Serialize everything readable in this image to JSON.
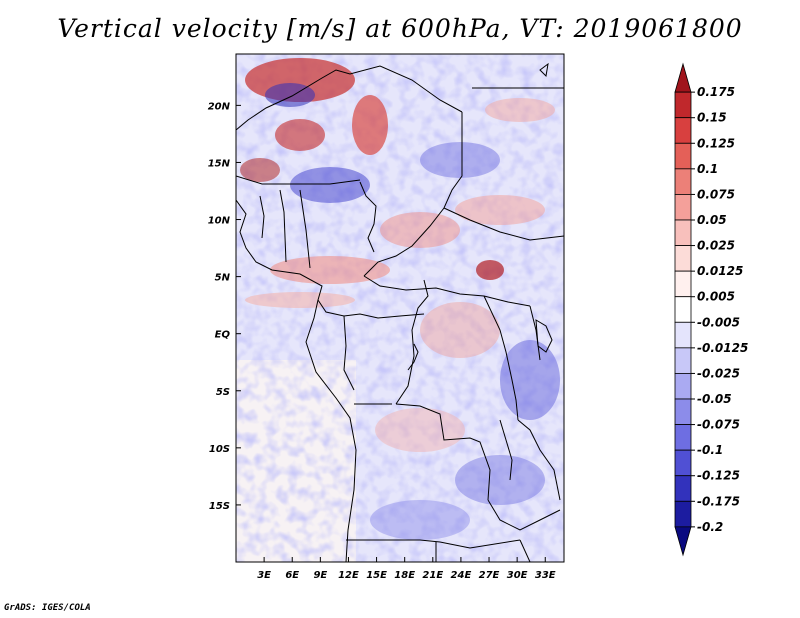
{
  "title": "Vertical velocity [m/s] at 600hPa, VT: 2019061800",
  "credit": "GrADS: IGES/COLA",
  "map": {
    "lon_range": [
      0,
      35
    ],
    "lat_range": [
      -20,
      24.5
    ],
    "lon_ticks": [
      {
        "value": 3,
        "label": "3E"
      },
      {
        "value": 6,
        "label": "6E"
      },
      {
        "value": 9,
        "label": "9E"
      },
      {
        "value": 12,
        "label": "12E"
      },
      {
        "value": 15,
        "label": "15E"
      },
      {
        "value": 18,
        "label": "18E"
      },
      {
        "value": 21,
        "label": "21E"
      },
      {
        "value": 24,
        "label": "24E"
      },
      {
        "value": 27,
        "label": "27E"
      },
      {
        "value": 30,
        "label": "30E"
      },
      {
        "value": 33,
        "label": "33E"
      }
    ],
    "lat_ticks": [
      {
        "value": 20,
        "label": "20N"
      },
      {
        "value": 15,
        "label": "15N"
      },
      {
        "value": 10,
        "label": "10N"
      },
      {
        "value": 5,
        "label": "5N"
      },
      {
        "value": 0,
        "label": "EQ"
      },
      {
        "value": -5,
        "label": "5S"
      },
      {
        "value": -10,
        "label": "10S"
      },
      {
        "value": -15,
        "label": "15S"
      }
    ]
  },
  "colorbar": {
    "levels": [
      "0.175",
      "0.15",
      "0.125",
      "0.1",
      "0.075",
      "0.05",
      "0.025",
      "0.0125",
      "0.005",
      "-0.005",
      "-0.0125",
      "-0.025",
      "-0.05",
      "-0.075",
      "-0.1",
      "-0.125",
      "-0.175",
      "-0.2"
    ],
    "colors": [
      "#a0141c",
      "#c0282c",
      "#d8403f",
      "#e46058",
      "#ec8078",
      "#f4a09a",
      "#f8c0bc",
      "#fcdcd8",
      "#fff0ee",
      "#ffffff",
      "#e4e4fc",
      "#c8c8f8",
      "#aaaaf2",
      "#8c8cea",
      "#6e6ee2",
      "#5050d4",
      "#3232bc",
      "#1c1ca0",
      "#0a0a80"
    ]
  }
}
